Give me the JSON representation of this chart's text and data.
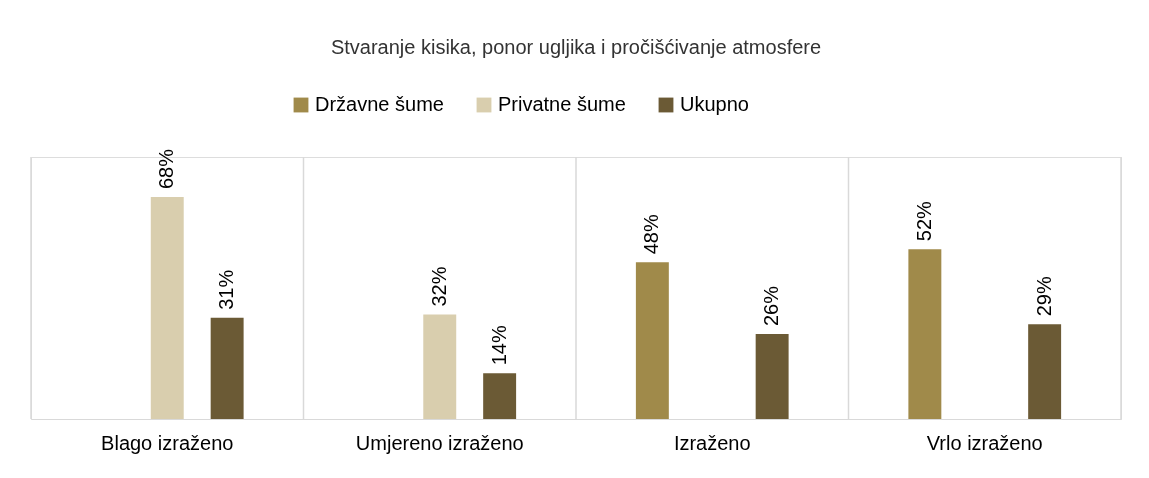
{
  "chart_data": {
    "type": "bar",
    "title": "Stvaranje kisika, ponor ugljika i pročišćivanje atmosfere",
    "categories": [
      "Blago izraženo",
      "Umjereno izraženo",
      "Izraženo",
      "Vrlo izraženo"
    ],
    "series": [
      {
        "name": "Državne šume",
        "color": "#a08a4a",
        "values": [
          null,
          null,
          48,
          52
        ],
        "value_labels": [
          null,
          null,
          "48%",
          "52%"
        ]
      },
      {
        "name": "Privatne šume",
        "color": "#d9ceae",
        "values": [
          68,
          32,
          null,
          null
        ],
        "value_labels": [
          "68%",
          "32%",
          null,
          null
        ]
      },
      {
        "name": "Ukupno",
        "color": "#6b5a35",
        "values": [
          31,
          14,
          26,
          29
        ],
        "value_labels": [
          "31%",
          "14%",
          "26%",
          "29%"
        ]
      }
    ],
    "legend": "top",
    "grid": "x"
  }
}
